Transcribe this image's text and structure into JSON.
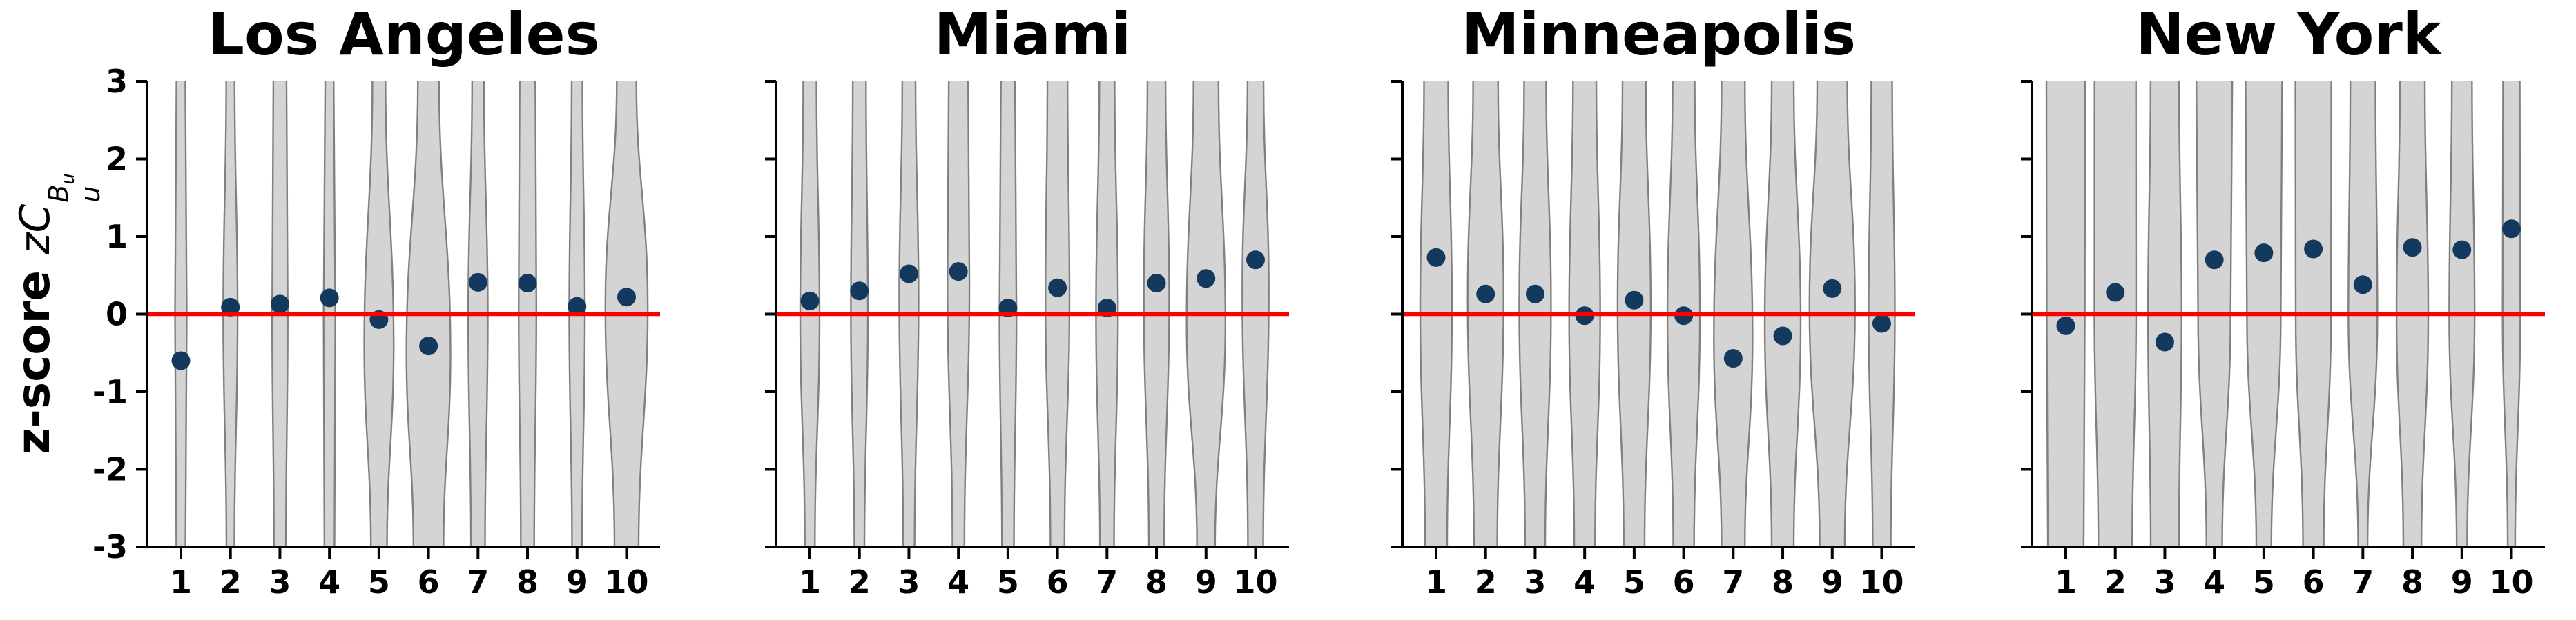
{
  "figure": {
    "ylabel_prefix": "z-score ",
    "ylabel_math_base": "zC",
    "ylabel_math_sup": "B",
    "ylabel_math_sup_sub": "u",
    "ylabel_math_sub": "u"
  },
  "colors": {
    "marker": "#14395e",
    "refline": "#fe0000",
    "violin_fill": "#d4d4d4",
    "violin_edge": "#808080",
    "axis": "#000000",
    "text": "#000000",
    "background": "#ffffff"
  },
  "chart_data": {
    "type": "violin",
    "description": "Four violin-plot panels (one per city); each shows 10 violins spanning the full y-range with a navy mean-dot per violin and a red reference line at y=0.",
    "x_ticks": [
      "1",
      "2",
      "3",
      "4",
      "5",
      "6",
      "7",
      "8",
      "9",
      "10"
    ],
    "y_ticks": [
      "3",
      "2",
      "1",
      "0",
      "-1",
      "-2",
      "-3"
    ],
    "y_tick_values": [
      3,
      2,
      1,
      0,
      -1,
      -2,
      -3
    ],
    "ylim": [
      -3,
      3
    ],
    "refline_y": 0,
    "ylabel": "z-score zC_u^{B_u}",
    "legend": "none",
    "grid": false,
    "violin_format": "[half_width_top_px, half_width_mid_px, half_width_bottom_px, bulge_center_y]",
    "panels": [
      {
        "title": "Los Angeles",
        "points": [
          -0.6,
          0.09,
          0.13,
          0.21,
          -0.07,
          -0.41,
          0.41,
          0.4,
          0.1,
          0.22
        ],
        "violins": [
          [
            6.4,
            8.5,
            6.6,
            0
          ],
          [
            6.1,
            10.4,
            5.8,
            0
          ],
          [
            9.5,
            11.3,
            8.7,
            0
          ],
          [
            6.1,
            8.5,
            7.3,
            0
          ],
          [
            9.5,
            21.3,
            11.7,
            -0.4
          ],
          [
            15.4,
            31.9,
            21.8,
            -0.5
          ],
          [
            8.5,
            14.2,
            10.2,
            0
          ],
          [
            11.3,
            12.8,
            9.7,
            0.1
          ],
          [
            7.8,
            11.3,
            7.3,
            0
          ],
          [
            14.2,
            30.7,
            17.5,
            0.1
          ]
        ]
      },
      {
        "title": "Miami",
        "points": [
          0.17,
          0.3,
          0.52,
          0.55,
          0.08,
          0.34,
          0.08,
          0.4,
          0.46,
          0.7
        ],
        "violins": [
          [
            9.6,
            14,
            7.3,
            0
          ],
          [
            9.6,
            12.3,
            7.3,
            0
          ],
          [
            9.6,
            14,
            8.2,
            0.2
          ],
          [
            14,
            15.9,
            8.7,
            0.4
          ],
          [
            10.2,
            12.3,
            8.7,
            0
          ],
          [
            14.6,
            17.4,
            10.2,
            0.2
          ],
          [
            11.1,
            15.9,
            10.2,
            0
          ],
          [
            13.1,
            18.4,
            11.1,
            0.2
          ],
          [
            18.1,
            28.1,
            13.1,
            -0.1
          ],
          [
            11.6,
            19.2,
            11.1,
            0.3
          ]
        ]
      },
      {
        "title": "Minneapolis",
        "points": [
          0.73,
          0.26,
          0.26,
          -0.02,
          0.18,
          -0.02,
          -0.57,
          -0.28,
          0.33,
          -0.12
        ],
        "violins": [
          [
            17.5,
            23,
            16,
            0.1
          ],
          [
            18.1,
            26,
            16.9,
            0.2
          ],
          [
            16,
            23,
            14.6,
            0.1
          ],
          [
            16.9,
            22.5,
            15.1,
            0
          ],
          [
            16.9,
            24,
            15.1,
            0.1
          ],
          [
            16,
            23.5,
            15.1,
            0
          ],
          [
            16.9,
            28,
            16.9,
            -0.3
          ],
          [
            16,
            26,
            16,
            -0.1
          ],
          [
            21.8,
            33,
            18.1,
            0.1
          ],
          [
            15.1,
            19,
            13.1,
            0
          ]
        ]
      },
      {
        "title": "New York",
        "points": [
          -0.15,
          0.28,
          -0.36,
          0.7,
          0.79,
          0.84,
          0.38,
          0.86,
          0.83,
          1.1
        ],
        "violins": [
          [
            28,
            27.6,
            25.9,
            0
          ],
          [
            30,
            30.2,
            24.5,
            0
          ],
          [
            20.6,
            24.3,
            20.4,
            0
          ],
          [
            26,
            23.5,
            11.4,
            0
          ],
          [
            26.5,
            24.5,
            10.9,
            0
          ],
          [
            26,
            25.6,
            15,
            0
          ],
          [
            18.2,
            21,
            6.8,
            0
          ],
          [
            18,
            23,
            13.1,
            0
          ],
          [
            14.6,
            18.4,
            7.6,
            0
          ],
          [
            12.1,
            12.8,
            5.4,
            0
          ]
        ]
      }
    ]
  }
}
